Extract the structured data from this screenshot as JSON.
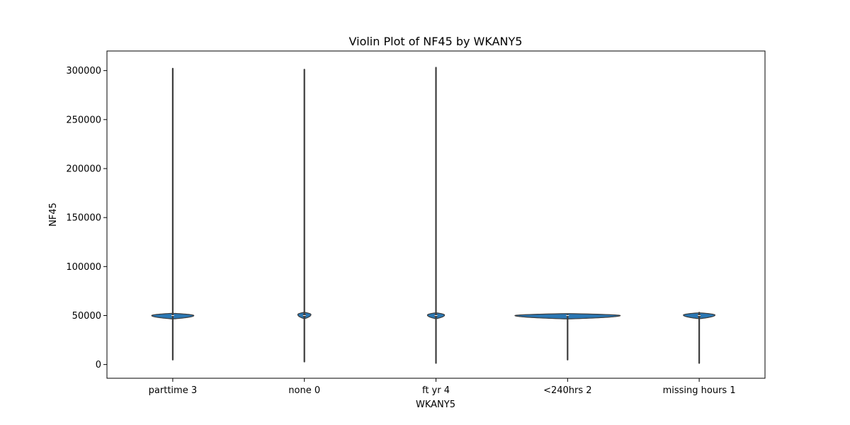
{
  "chart_data": {
    "type": "violin",
    "title": "Violin Plot of NF45 by WKANY5",
    "xlabel": "WKANY5",
    "ylabel": "NF45",
    "ylim": [
      -14000,
      320000
    ],
    "yticks": [
      0,
      50000,
      100000,
      150000,
      200000,
      250000,
      300000
    ],
    "ytick_labels": [
      "0",
      "50000",
      "100000",
      "150000",
      "200000",
      "250000",
      "300000"
    ],
    "grid": false,
    "legend": "none",
    "categories": [
      "parttime 3",
      "none 0",
      "ft yr 4",
      "<240hrs 2",
      "missing hours 1"
    ],
    "series": [
      {
        "category": "parttime 3",
        "min": 5000,
        "max": 302000,
        "q1": 49500,
        "median": 50000,
        "q3": 50500,
        "density_peak": 50000,
        "max_halfwidth": 0.16
      },
      {
        "category": "none 0",
        "min": 3000,
        "max": 301000,
        "q1": 48500,
        "median": 50000,
        "q3": 51500,
        "density_peak": 51000,
        "max_halfwidth": 0.05
      },
      {
        "category": "ft yr 4",
        "min": 1500,
        "max": 303000,
        "q1": 48500,
        "median": 50000,
        "q3": 51000,
        "density_peak": 50500,
        "max_halfwidth": 0.065
      },
      {
        "category": "<240hrs 2",
        "min": 5000,
        "max": 50500,
        "q1": 49800,
        "median": 50000,
        "q3": 50200,
        "density_peak": 50000,
        "max_halfwidth": 0.4
      },
      {
        "category": "missing hours 1",
        "min": 1500,
        "max": 53000,
        "q1": 48500,
        "median": 50000,
        "q3": 51000,
        "density_peak": 50500,
        "max_halfwidth": 0.12
      }
    ],
    "colors": {
      "violin_fill": "#2a77b4",
      "violin_edge": "#3d3d3d",
      "box_line": "#3d3d3d",
      "axis": "#000000"
    }
  }
}
